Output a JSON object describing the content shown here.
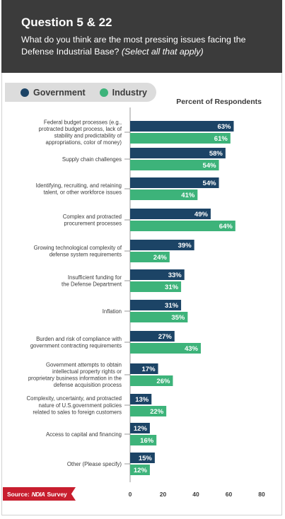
{
  "header": {
    "title": "Question 5 & 22",
    "question": "What do you think are the most pressing issues facing the Defense Industrial Base?",
    "note": "(Select all that apply)"
  },
  "legend": {
    "government": "Government",
    "industry": "Industry"
  },
  "source": {
    "prefix": "Source:",
    "brand": "NDIA",
    "suffix": "Survey"
  },
  "colors": {
    "government": "#1c4466",
    "industry": "#3db37a",
    "header_bg": "#3b3b3b",
    "source_bg": "#c81e2e"
  },
  "chart_data": {
    "type": "bar",
    "orientation": "horizontal",
    "xlabel": "Percent of Respondents",
    "xlim": [
      0,
      80
    ],
    "xticks": [
      0,
      20,
      40,
      60,
      80
    ],
    "grid": false,
    "legend_position": "top-left",
    "categories": [
      [
        "Federal budget processes (e.g.,",
        "protracted budget process, lack of",
        "stability and predictability of",
        "appropriations, color of money)"
      ],
      [
        "Supply chain challenges"
      ],
      [
        "Identifying, recruiting, and retaining",
        "talent, or other workforce issues"
      ],
      [
        "Complex and protracted",
        "procurement processes"
      ],
      [
        "Growing technological complexity of",
        "defense system requirements"
      ],
      [
        "Insufficient funding for",
        "the Defense Department"
      ],
      [
        "Inflation"
      ],
      [
        "Burden and risk of compliance with",
        "government contracting requirements"
      ],
      [
        "Government attempts to obtain",
        "intellectual property rights or",
        "proprietary business information in the",
        "defense acquisition process"
      ],
      [
        "Complexity, uncertainty, and protracted",
        "nature of U.S.government policies",
        "related to sales to foreign customers"
      ],
      [
        "Access to capital and financing"
      ],
      [
        "Other (Please specify)"
      ]
    ],
    "series": [
      {
        "name": "Government",
        "values": [
          63,
          58,
          54,
          49,
          39,
          33,
          31,
          27,
          17,
          13,
          12,
          15
        ]
      },
      {
        "name": "Industry",
        "values": [
          61,
          54,
          41,
          64,
          24,
          31,
          35,
          43,
          26,
          22,
          16,
          12
        ]
      }
    ]
  }
}
